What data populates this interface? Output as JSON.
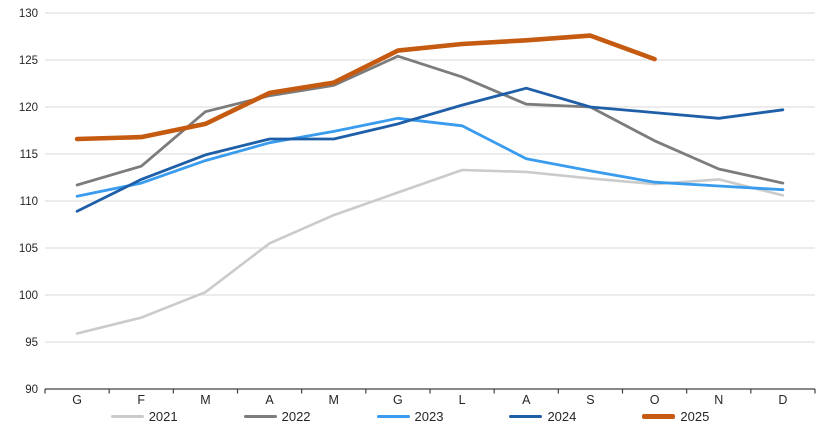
{
  "chart_data": {
    "type": "line",
    "title": "",
    "xlabel": "",
    "ylabel": "",
    "categories": [
      "G",
      "F",
      "M",
      "A",
      "M",
      "G",
      "L",
      "A",
      "S",
      "O",
      "N",
      "D"
    ],
    "series": [
      {
        "name": "2021",
        "color": "#cbcbcb",
        "width": 2.6,
        "values": [
          95.9,
          97.6,
          100.3,
          105.5,
          108.5,
          110.9,
          113.3,
          113.1,
          112.4,
          111.8,
          112.3,
          110.6
        ]
      },
      {
        "name": "2022",
        "color": "#7c7c7c",
        "width": 2.8,
        "values": [
          111.7,
          113.7,
          119.5,
          121.2,
          122.3,
          125.4,
          123.2,
          120.3,
          120.0,
          116.4,
          113.4,
          111.9
        ]
      },
      {
        "name": "2023",
        "color": "#3a9cee",
        "width": 2.8,
        "values": [
          110.5,
          111.9,
          114.3,
          116.2,
          117.4,
          118.8,
          118.0,
          114.5,
          113.2,
          112.0,
          111.6,
          111.2
        ]
      },
      {
        "name": "2024",
        "color": "#1f5fa8",
        "width": 2.8,
        "values": [
          108.9,
          112.3,
          114.9,
          116.6,
          116.6,
          118.2,
          120.2,
          122.0,
          120.0,
          119.4,
          118.8,
          119.7
        ]
      },
      {
        "name": "2025",
        "color": "#c55a11",
        "width": 4.6,
        "values": [
          116.6,
          116.8,
          118.2,
          121.5,
          122.6,
          126.0,
          126.7,
          127.1,
          127.6,
          125.1,
          null,
          null
        ]
      }
    ],
    "ylim": [
      90,
      130
    ],
    "yticks": [
      90,
      95,
      100,
      105,
      110,
      115,
      120,
      125,
      130
    ],
    "grid": "horizontal",
    "gridline_color": "#d9d9d9",
    "axis_color": "#404040",
    "tick_label_color": "#262626",
    "legend_position": "bottom"
  }
}
